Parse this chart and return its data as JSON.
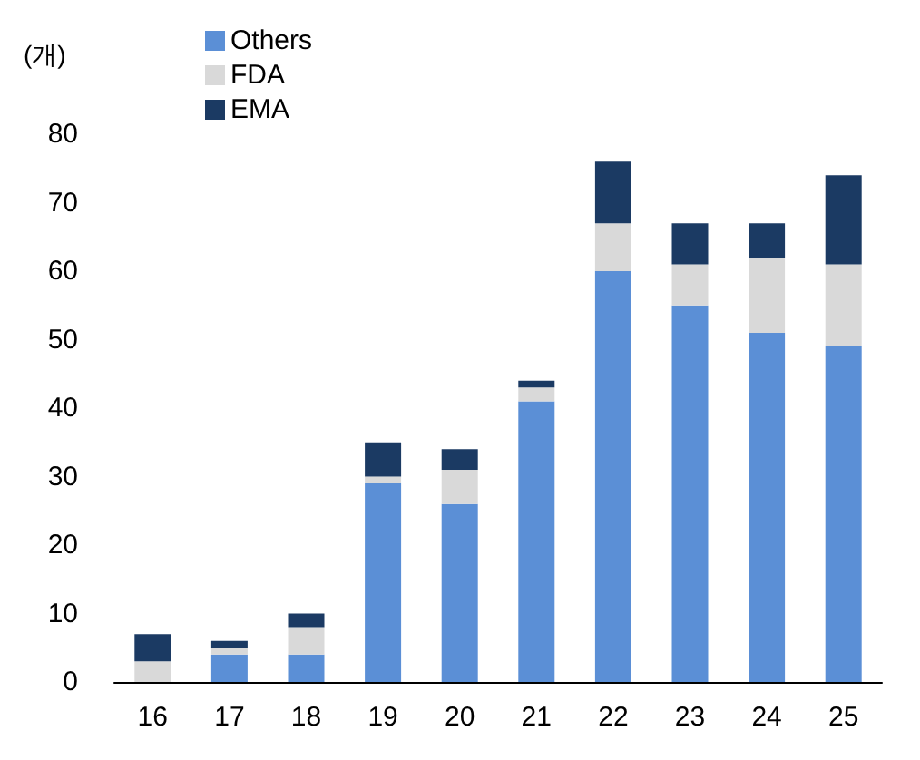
{
  "chart_data": {
    "type": "bar",
    "stacked": true,
    "ylabel": "(개)",
    "categories": [
      "16",
      "17",
      "18",
      "19",
      "20",
      "21",
      "22",
      "23",
      "24",
      "25"
    ],
    "series": [
      {
        "name": "Others",
        "color": "#5b8fd6",
        "values": [
          0,
          4,
          4,
          29,
          26,
          41,
          60,
          55,
          51,
          49
        ]
      },
      {
        "name": "FDA",
        "color": "#d9d9d9",
        "values": [
          3,
          1,
          4,
          1,
          5,
          2,
          7,
          6,
          11,
          12
        ]
      },
      {
        "name": "EMA",
        "color": "#1b3a63",
        "values": [
          4,
          1,
          2,
          5,
          3,
          1,
          9,
          6,
          5,
          13
        ]
      }
    ],
    "ylim": [
      0,
      80
    ],
    "yticks": [
      0,
      10,
      20,
      30,
      40,
      50,
      60,
      70,
      80
    ],
    "grid": false,
    "legend": "top left"
  }
}
